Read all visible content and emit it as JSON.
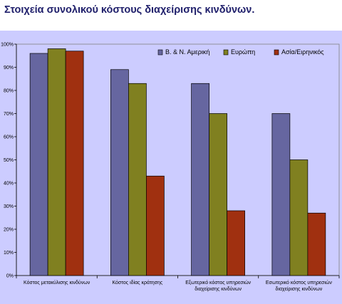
{
  "chart_data": {
    "type": "bar",
    "title": "Στοιχεία συνολικού κόστους διαχείρισης κινδύνων.",
    "ylim": [
      0,
      100
    ],
    "yticks": [
      "0%",
      "10%",
      "20%",
      "30%",
      "40%",
      "50%",
      "60%",
      "70%",
      "80%",
      "90%",
      "100%"
    ],
    "categories": [
      [
        "Κόστος μετακύλισης κινδύνων"
      ],
      [
        "Κόστος ιδίας κράτησης"
      ],
      [
        "Εξωτερικό κόστος υπηρεσιών",
        "διαχείρισης κινδύνων"
      ],
      [
        "Εσωτερικό κόστος υπηρεσιών",
        "διαχείρισης κινδύνων"
      ]
    ],
    "series": [
      {
        "name": "Β. & Ν. Αμερική",
        "color": "#6666a0",
        "values": [
          96,
          89,
          83,
          70
        ]
      },
      {
        "name": "Ευρώπη",
        "color": "#808020",
        "values": [
          98,
          83,
          70,
          50
        ]
      },
      {
        "name": "Ασία/Ειρηνικός",
        "color": "#a03010",
        "values": [
          97,
          43,
          28,
          27
        ]
      }
    ],
    "legend_position": "top-right",
    "grid": false
  }
}
